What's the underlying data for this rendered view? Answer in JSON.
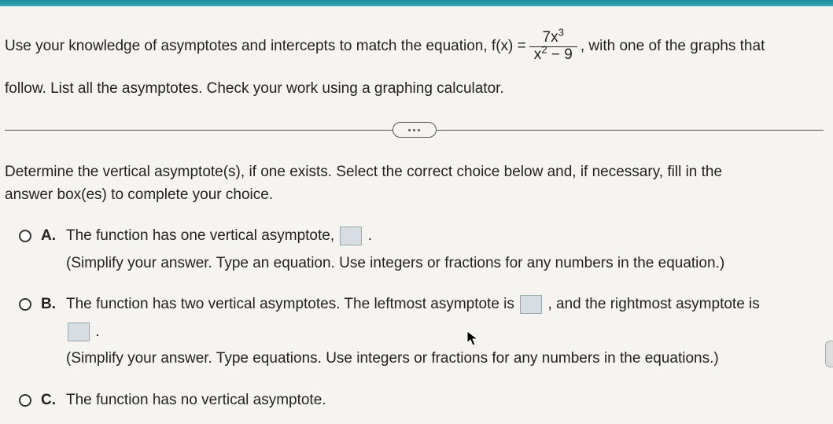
{
  "question": {
    "part1": "Use your knowledge of asymptotes and intercepts to match the equation, f(x) =",
    "fraction_num_html": "7x<sup>3</sup>",
    "fraction_den_html": "x<sup>2</sup> − 9",
    "part2": ", with one of the graphs that",
    "part3": "follow. List all the asymptotes. Check your work using a graphing calculator."
  },
  "instruction": {
    "line1": "Determine the vertical asymptote(s), if one exists. Select the correct choice below and, if necessary, fill in the",
    "line2": "answer box(es) to complete your choice."
  },
  "choices": {
    "a": {
      "letter": "A.",
      "text1": "The function has one vertical asymptote, ",
      "text1_after": ".",
      "hint": "(Simplify your answer. Type an equation. Use integers or fractions for any numbers in the equation.)"
    },
    "b": {
      "letter": "B.",
      "text1": "The function has two vertical asymptotes. The leftmost asymptote is ",
      "text1_after": ", and the rightmost asymptote is",
      "text2_after": ".",
      "hint": "(Simplify your answer. Type equations. Use integers or fractions for any numbers in the equations.)"
    },
    "c": {
      "letter": "C.",
      "text1": "The function has no vertical asymptote."
    }
  },
  "colors": {
    "background": "#f5f4f0",
    "text": "#222222",
    "topbar": "#1a8a9e",
    "input_box": "#d8dde3",
    "divider": "#555555"
  }
}
